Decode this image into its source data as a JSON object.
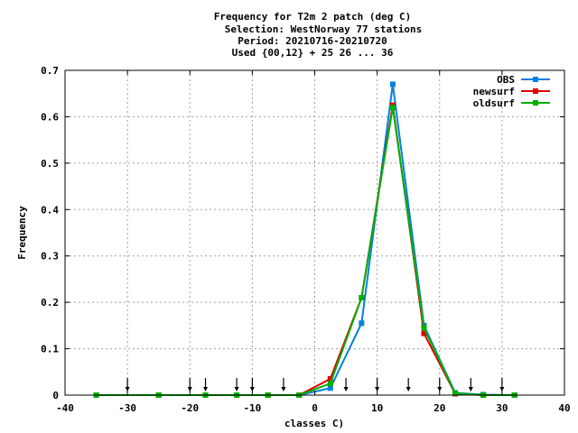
{
  "chart_data": {
    "type": "line",
    "title_lines": [
      "Frequency  for T2m 2 patch (deg C)",
      "Selection: WestNorway     77 stations",
      "Period: 20210716-20210720",
      "Used {00,12} + 25 26 ... 36"
    ],
    "xlabel": "classes C)",
    "ylabel": "Frequency",
    "xlim": [
      -40,
      40
    ],
    "ylim": [
      0,
      0.7
    ],
    "xticks": [
      -40,
      -30,
      -20,
      -10,
      0,
      10,
      20,
      30,
      40
    ],
    "xtick_labels": [
      "-40",
      "-30",
      "-20",
      "-10",
      "0",
      "10",
      "20",
      "30",
      "40"
    ],
    "yticks": [
      0,
      0.1,
      0.2,
      0.3,
      0.4,
      0.5,
      0.6,
      0.7
    ],
    "ytick_labels": [
      "0",
      "0.1",
      "0.2",
      "0.3",
      "0.4",
      "0.5",
      "0.6",
      "0.7"
    ],
    "grid": true,
    "legend_position": "top-right",
    "class_boundaries": [
      -30,
      -20,
      -17.5,
      -12.5,
      -10,
      -5,
      5,
      10,
      15,
      20,
      25,
      30
    ],
    "x": [
      -35,
      -25,
      -17.5,
      -12.5,
      -7.5,
      -2.5,
      2.5,
      7.5,
      12.5,
      17.5,
      22.5,
      27,
      32
    ],
    "series": [
      {
        "name": "OBS",
        "color": "#0080e0",
        "values": [
          0,
          0,
          0,
          0,
          0,
          0,
          0.015,
          0.155,
          0.67,
          0.15,
          0.005,
          0.001,
          0
        ]
      },
      {
        "name": "newsurf",
        "color": "#e00000",
        "values": [
          0,
          0,
          0,
          0,
          0,
          0,
          0.035,
          0.21,
          0.625,
          0.133,
          0.003,
          0,
          0
        ]
      },
      {
        "name": "oldsurf",
        "color": "#00b000",
        "values": [
          0,
          0,
          0,
          0,
          0,
          0,
          0.025,
          0.21,
          0.62,
          0.145,
          0.004,
          0,
          0
        ]
      }
    ]
  }
}
